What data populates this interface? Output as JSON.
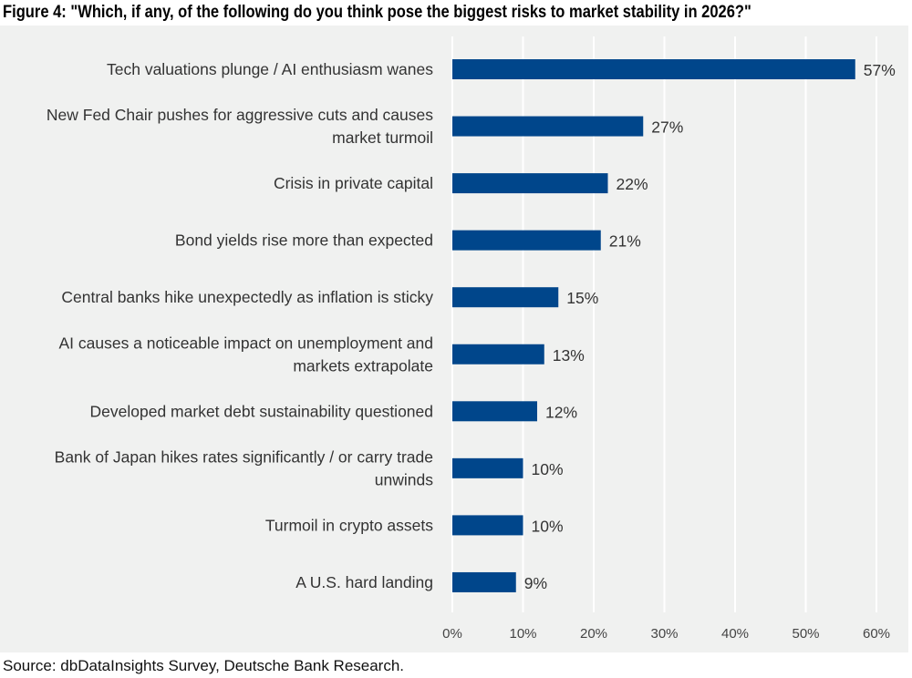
{
  "title": "Figure 4: \"Which, if any, of the following do you think pose the biggest risks to market stability in 2026?\"",
  "source": "Source: dbDataInsights Survey, Deutsche Bank Research.",
  "colors": {
    "bar": "#00468b",
    "background": "#f0f1f0",
    "grid": "#ffffff"
  },
  "chart_data": {
    "type": "bar",
    "orientation": "horizontal",
    "title": "Figure 4: \"Which, if any, of the following do you think pose the biggest risks to market stability in 2026?\"",
    "categories": [
      [
        "Tech valuations plunge / AI enthusiasm wanes"
      ],
      [
        "New Fed Chair pushes for aggressive cuts and causes",
        "market turmoil"
      ],
      [
        "Crisis in private capital"
      ],
      [
        "Bond yields rise more than expected"
      ],
      [
        "Central banks hike unexpectedly as inflation is sticky"
      ],
      [
        "AI causes a noticeable impact on unemployment and",
        "markets extrapolate"
      ],
      [
        "Developed market debt sustainability questioned"
      ],
      [
        "Bank of Japan hikes rates significantly / or carry trade",
        "unwinds"
      ],
      [
        "Turmoil in crypto assets"
      ],
      [
        "A U.S. hard landing"
      ]
    ],
    "values": [
      57,
      27,
      22,
      21,
      15,
      13,
      12,
      10,
      10,
      9
    ],
    "data_labels": [
      "57%",
      "27%",
      "22%",
      "21%",
      "15%",
      "13%",
      "12%",
      "10%",
      "10%",
      "9%"
    ],
    "xlim": [
      0,
      60
    ],
    "xticks": [
      0,
      10,
      20,
      30,
      40,
      50,
      60
    ],
    "xtick_labels": [
      "0%",
      "10%",
      "20%",
      "30%",
      "40%",
      "50%",
      "60%"
    ],
    "xlabel": "",
    "ylabel": "",
    "grid": "vertical",
    "legend": "none"
  }
}
